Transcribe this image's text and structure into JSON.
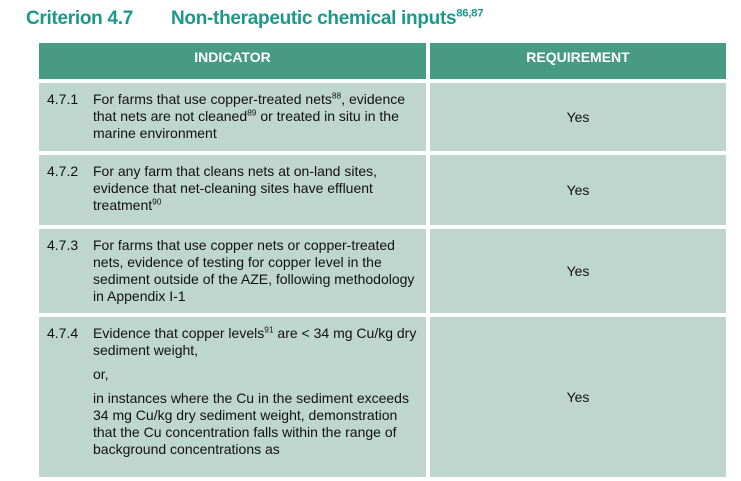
{
  "title": {
    "number": "Criterion 4.7",
    "text": "Non-therapeutic chemical inputs",
    "footnotes": "86,87"
  },
  "table": {
    "headers": {
      "indicator": "INDICATOR",
      "requirement": "REQUIREMENT"
    },
    "rows": [
      {
        "id": "4.7.1",
        "parts": [
          {
            "a": "For farms that use copper-treated nets",
            "s1": "88",
            "b": ", evidence that nets are not cleaned",
            "s2": "89",
            "c": " or treated in situ in the marine environment"
          }
        ],
        "requirement": "Yes"
      },
      {
        "id": "4.7.2",
        "parts": [
          {
            "a": "For any farm that cleans nets at on-land sites, evidence that net-cleaning sites have effluent treatment",
            "s1": "90"
          }
        ],
        "requirement": "Yes"
      },
      {
        "id": "4.7.3",
        "parts": [
          {
            "a": "For farms that use copper nets or copper-treated nets, evidence of testing for copper level in the sediment outside of the AZE, following methodology in Appendix I-1"
          }
        ],
        "requirement": "Yes"
      },
      {
        "id": "4.7.4",
        "parts": [
          {
            "a": "Evidence that copper levels",
            "s1": "91",
            "b": " are < 34 mg Cu/kg dry sediment weight,"
          },
          {
            "a": "or,"
          },
          {
            "a": "in instances where the Cu in the sediment exceeds 34 mg Cu/kg dry sediment weight, demonstration that the Cu concentration falls within the range of background concentrations as"
          }
        ],
        "requirement": "Yes"
      }
    ]
  }
}
